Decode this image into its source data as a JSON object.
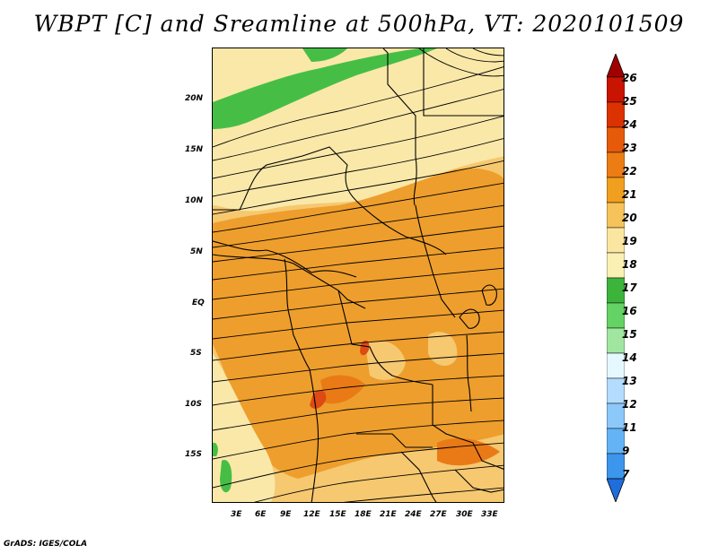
{
  "title": "WBPT [C] and Sreamline at 500hPa, VT: 2020101509",
  "credit": "GrADS: IGES/COLA",
  "lat_labels": [
    "20N",
    "15N",
    "10N",
    "5N",
    "EQ",
    "5S",
    "10S",
    "15S"
  ],
  "lon_labels": [
    "3E",
    "6E",
    "9E",
    "12E",
    "15E",
    "18E",
    "21E",
    "24E",
    "27E",
    "30E",
    "33E"
  ],
  "colorbar": {
    "labels": [
      "26",
      "25",
      "24",
      "23",
      "22",
      "21",
      "20",
      "19",
      "18",
      "17",
      "16",
      "15",
      "14",
      "13",
      "12",
      "11",
      "9",
      "7"
    ],
    "colors": [
      "#a00000",
      "#c81400",
      "#dc3200",
      "#e65a0a",
      "#eb7d14",
      "#f0a01e",
      "#f5c35a",
      "#fae6a0",
      "#faf0b4",
      "#3cb43c",
      "#64d264",
      "#a0e6a0",
      "#e6f8ff",
      "#b4dcff",
      "#8cc8fa",
      "#64b4f5",
      "#3c96eb",
      "#1e6edc"
    ]
  },
  "colors": {
    "pale": "#fae8a8",
    "light_orange": "#f6c870",
    "orange": "#ee9e2c",
    "deep_orange": "#ea7a16",
    "red": "#dd4a14",
    "green": "#46be46"
  }
}
